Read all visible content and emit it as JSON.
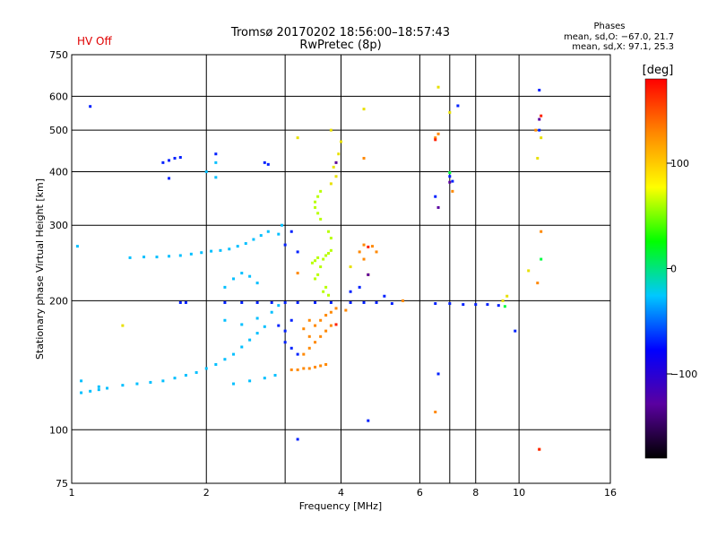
{
  "header": {
    "status": "HV Off",
    "title_line1": "Tromsø 20170202 18:56:00–18:57:43",
    "title_line2": "RwPretec (8p)",
    "phase_title": "Phases",
    "phase_o": "mean, sd,O: −67.0, 21.7",
    "phase_x": "mean, sd,X:  97.1, 25.3"
  },
  "colorbar": {
    "label": "[deg]",
    "ticks": [
      "100",
      "0",
      "−100"
    ],
    "tick_values": [
      100,
      0,
      -100
    ],
    "range": [
      -180,
      180
    ],
    "colors": [
      "#000000",
      "#5a00a0",
      "#0000ff",
      "#00c8ff",
      "#00ff00",
      "#ffff00",
      "#ff8800",
      "#ff0000"
    ]
  },
  "chart_data": {
    "type": "scatter",
    "xlabel": "Frequency [MHz]",
    "ylabel": "Stationary phase Virtual Height [km]",
    "xscale": "log",
    "yscale": "log",
    "xlim": [
      1,
      16
    ],
    "ylim": [
      75,
      750
    ],
    "xticks": [
      1,
      2,
      4,
      6,
      8,
      10,
      16
    ],
    "xtick_labels": [
      "1",
      "2",
      "4",
      "6",
      "8",
      "10",
      "16"
    ],
    "yticks": [
      75,
      100,
      200,
      300,
      400,
      500,
      600,
      750
    ],
    "ytick_labels": [
      "75",
      "100",
      "200",
      "300",
      "400",
      "500",
      "600",
      "750"
    ],
    "grid": true,
    "color_by": "phase",
    "x_gridlines": [
      1,
      2,
      3,
      4,
      6,
      7,
      8,
      10,
      16
    ],
    "y_gridlines": [
      75,
      100,
      200,
      300,
      400,
      500,
      600,
      750
    ],
    "series": [
      {
        "color": "#00bfff",
        "points": [
          [
            1.05,
            122
          ],
          [
            1.1,
            123
          ],
          [
            1.15,
            124
          ],
          [
            1.2,
            125
          ],
          [
            1.3,
            127
          ],
          [
            1.4,
            128
          ],
          [
            1.5,
            129
          ],
          [
            1.6,
            130
          ],
          [
            1.7,
            132
          ],
          [
            1.8,
            134
          ],
          [
            1.9,
            136
          ],
          [
            2.0,
            139
          ],
          [
            2.1,
            142
          ],
          [
            2.2,
            146
          ],
          [
            2.3,
            150
          ],
          [
            2.4,
            156
          ],
          [
            2.5,
            162
          ],
          [
            2.6,
            168
          ],
          [
            2.7,
            174
          ],
          [
            2.3,
            128
          ],
          [
            2.5,
            130
          ],
          [
            2.7,
            132
          ],
          [
            2.85,
            134
          ],
          [
            1.35,
            252
          ],
          [
            1.45,
            253
          ],
          [
            1.55,
            253
          ],
          [
            1.65,
            254
          ],
          [
            1.75,
            255
          ],
          [
            1.85,
            257
          ],
          [
            1.95,
            259
          ],
          [
            2.05,
            261
          ],
          [
            2.15,
            262
          ],
          [
            2.25,
            264
          ],
          [
            2.35,
            268
          ],
          [
            2.45,
            272
          ],
          [
            2.55,
            278
          ],
          [
            2.65,
            284
          ],
          [
            2.75,
            290
          ],
          [
            2.2,
            215
          ],
          [
            2.3,
            225
          ],
          [
            2.4,
            232
          ],
          [
            2.5,
            228
          ],
          [
            2.6,
            220
          ],
          [
            2.2,
            180
          ],
          [
            2.4,
            176
          ],
          [
            2.6,
            182
          ],
          [
            2.8,
            188
          ],
          [
            2.9,
            195
          ],
          [
            2.95,
            300
          ],
          [
            2.9,
            286
          ],
          [
            1.05,
            130
          ],
          [
            1.15,
            126
          ],
          [
            2.0,
            400
          ],
          [
            2.1,
            388
          ],
          [
            2.1,
            420
          ],
          [
            1.03,
            268
          ]
        ]
      },
      {
        "color": "#0020ff",
        "points": [
          [
            1.1,
            568
          ],
          [
            1.6,
            420
          ],
          [
            1.65,
            425
          ],
          [
            1.7,
            430
          ],
          [
            1.75,
            432
          ],
          [
            1.65,
            386
          ],
          [
            2.1,
            440
          ],
          [
            2.7,
            420
          ],
          [
            2.75,
            416
          ],
          [
            2.2,
            198
          ],
          [
            2.4,
            198
          ],
          [
            2.6,
            198
          ],
          [
            2.8,
            198
          ],
          [
            3.0,
            198
          ],
          [
            3.2,
            198
          ],
          [
            3.5,
            198
          ],
          [
            3.8,
            198
          ],
          [
            4.2,
            198
          ],
          [
            4.5,
            198
          ],
          [
            4.8,
            198
          ],
          [
            5.2,
            197
          ],
          [
            6.5,
            197
          ],
          [
            7.0,
            197
          ],
          [
            7.5,
            196
          ],
          [
            8.0,
            196
          ],
          [
            8.5,
            196
          ],
          [
            9.0,
            195
          ],
          [
            3.0,
            160
          ],
          [
            3.1,
            155
          ],
          [
            3.2,
            150
          ],
          [
            3.0,
            170
          ],
          [
            3.1,
            180
          ],
          [
            2.9,
            175
          ],
          [
            3.1,
            290
          ],
          [
            3.0,
            270
          ],
          [
            3.2,
            260
          ],
          [
            4.4,
            215
          ],
          [
            4.2,
            210
          ],
          [
            5.0,
            205
          ],
          [
            6.6,
            135
          ],
          [
            6.5,
            350
          ],
          [
            7.0,
            390
          ],
          [
            7.1,
            380
          ],
          [
            7.3,
            570
          ],
          [
            11.1,
            620
          ],
          [
            11.1,
            500
          ],
          [
            1.75,
            198
          ],
          [
            1.8,
            198
          ],
          [
            4.6,
            105
          ],
          [
            3.2,
            95
          ],
          [
            9.8,
            170
          ]
        ]
      },
      {
        "color": "#ff8800",
        "points": [
          [
            3.1,
            138
          ],
          [
            3.2,
            138
          ],
          [
            3.3,
            139
          ],
          [
            3.4,
            139
          ],
          [
            3.5,
            140
          ],
          [
            3.6,
            141
          ],
          [
            3.7,
            142
          ],
          [
            3.3,
            150
          ],
          [
            3.4,
            155
          ],
          [
            3.5,
            160
          ],
          [
            3.6,
            165
          ],
          [
            3.7,
            170
          ],
          [
            3.8,
            175
          ],
          [
            3.4,
            165
          ],
          [
            3.5,
            175
          ],
          [
            3.6,
            180
          ],
          [
            3.7,
            185
          ],
          [
            3.8,
            188
          ],
          [
            3.9,
            192
          ],
          [
            3.3,
            172
          ],
          [
            3.4,
            180
          ],
          [
            4.5,
            270
          ],
          [
            4.7,
            268
          ],
          [
            4.4,
            260
          ],
          [
            4.8,
            260
          ],
          [
            4.6,
            230
          ],
          [
            4.5,
            250
          ],
          [
            6.5,
            480
          ],
          [
            6.6,
            490
          ],
          [
            7.1,
            360
          ],
          [
            10.9,
            500
          ],
          [
            11.2,
            290
          ],
          [
            11.1,
            90
          ],
          [
            11.0,
            220
          ],
          [
            3.2,
            232
          ],
          [
            5.5,
            200
          ],
          [
            6.5,
            110
          ],
          [
            4.5,
            430
          ],
          [
            4.1,
            190
          ]
        ]
      },
      {
        "color": "#b8ff00",
        "points": [
          [
            3.5,
            225
          ],
          [
            3.55,
            230
          ],
          [
            3.6,
            240
          ],
          [
            3.65,
            250
          ],
          [
            3.7,
            255
          ],
          [
            3.75,
            258
          ],
          [
            3.8,
            262
          ],
          [
            3.5,
            340
          ],
          [
            3.55,
            350
          ],
          [
            3.6,
            360
          ],
          [
            3.5,
            330
          ],
          [
            3.55,
            320
          ],
          [
            3.6,
            310
          ],
          [
            3.45,
            245
          ],
          [
            3.5,
            248
          ],
          [
            3.55,
            252
          ],
          [
            3.75,
            290
          ],
          [
            3.8,
            280
          ],
          [
            3.65,
            210
          ],
          [
            3.7,
            215
          ],
          [
            3.75,
            206
          ]
        ]
      },
      {
        "color": "#e8e000",
        "points": [
          [
            3.8,
            375
          ],
          [
            3.9,
            390
          ],
          [
            3.85,
            410
          ],
          [
            3.9,
            420
          ],
          [
            3.95,
            440
          ],
          [
            4.0,
            470
          ],
          [
            3.8,
            500
          ],
          [
            3.2,
            480
          ],
          [
            4.5,
            560
          ],
          [
            6.6,
            630
          ],
          [
            7.0,
            550
          ],
          [
            11.2,
            480
          ],
          [
            11.0,
            430
          ],
          [
            9.2,
            200
          ],
          [
            9.4,
            205
          ],
          [
            10.5,
            235
          ],
          [
            4.2,
            240
          ],
          [
            1.3,
            175
          ]
        ]
      },
      {
        "color": "#00ff40",
        "points": [
          [
            9.3,
            194
          ],
          [
            11.2,
            250
          ],
          [
            7.0,
            398
          ]
        ]
      },
      {
        "color": "#ff2000",
        "points": [
          [
            11.2,
            540
          ],
          [
            6.5,
            475
          ],
          [
            11.1,
            90
          ],
          [
            4.6,
            267
          ],
          [
            3.9,
            176
          ]
        ]
      },
      {
        "color": "#5a00a0",
        "points": [
          [
            6.6,
            330
          ],
          [
            7.0,
            378
          ],
          [
            3.9,
            420
          ],
          [
            4.6,
            230
          ],
          [
            11.1,
            530
          ]
        ]
      }
    ]
  }
}
